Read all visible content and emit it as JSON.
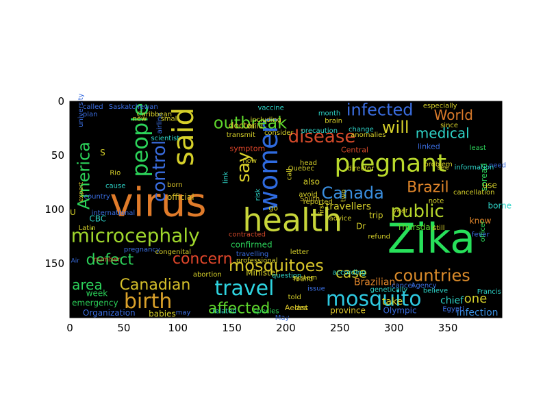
{
  "figure": {
    "image_kind": "word cloud",
    "background_color": "#000000",
    "axes": {
      "x_ticks": [
        "0",
        "50",
        "100",
        "150",
        "200",
        "250",
        "300",
        "350"
      ],
      "y_ticks": [
        "0",
        "50",
        "100",
        "150"
      ],
      "xlim": [
        0,
        400
      ],
      "ylim": [
        0,
        200
      ],
      "grid": false
    }
  },
  "words": [
    {
      "text": "virus",
      "color": "#e07b2a"
    },
    {
      "text": "health",
      "color": "#c8d63a"
    },
    {
      "text": "Zika",
      "color": "#27e05a"
    },
    {
      "text": "said",
      "color": "#d6d02a"
    },
    {
      "text": "pregnant",
      "color": "#b9d92c"
    },
    {
      "text": "travel",
      "color": "#2ed4e0"
    },
    {
      "text": "mosquito",
      "color": "#2ec8e0"
    },
    {
      "text": "women",
      "color": "#2f6be0"
    },
    {
      "text": "people",
      "color": "#2cd35a"
    },
    {
      "text": "microcephaly",
      "color": "#9fd62c"
    },
    {
      "text": "birth",
      "color": "#d9a02a"
    },
    {
      "text": "countries",
      "color": "#d98a2a"
    },
    {
      "text": "mosquitoes",
      "color": "#d6c42a"
    },
    {
      "text": "public",
      "color": "#b6d62c"
    },
    {
      "text": "disease",
      "color": "#d64a2a"
    },
    {
      "text": "America",
      "color": "#2cd35a"
    },
    {
      "text": "infected",
      "color": "#3a6de0"
    },
    {
      "text": "outbreak",
      "color": "#5ed62c"
    },
    {
      "text": "Canada",
      "color": "#3a8fe0"
    },
    {
      "text": "Brazil",
      "color": "#e0852a"
    },
    {
      "text": "will",
      "color": "#d6d02a"
    },
    {
      "text": "World",
      "color": "#d97a2a"
    },
    {
      "text": "medical",
      "color": "#2ed4c8"
    },
    {
      "text": "control",
      "color": "#3a6de0"
    },
    {
      "text": "say",
      "color": "#d9d02a"
    },
    {
      "text": "defect",
      "color": "#2cd35a"
    },
    {
      "text": "concern",
      "color": "#e0462a"
    },
    {
      "text": "area",
      "color": "#2cd35a"
    },
    {
      "text": "Canadian",
      "color": "#d6c02a"
    },
    {
      "text": "case",
      "color": "#d6d02a"
    },
    {
      "text": "affected",
      "color": "#5ed62c"
    },
    {
      "text": "one",
      "color": "#d6d02a"
    },
    {
      "text": "infection",
      "color": "#3a8fe0"
    },
    {
      "text": "Olympic",
      "color": "#3a6de0"
    },
    {
      "text": "province",
      "color": "#d6c02a"
    },
    {
      "text": "last",
      "color": "#d6d02a"
    },
    {
      "text": "Aedes",
      "color": "#d6c02a"
    },
    {
      "text": "species",
      "color": "#2cd35a"
    },
    {
      "text": "related",
      "color": "#2ed4c8"
    },
    {
      "text": "babies",
      "color": "#d6d02a"
    },
    {
      "text": "Organization",
      "color": "#3a6de0"
    },
    {
      "text": "emergency",
      "color": "#2cd35a"
    },
    {
      "text": "week",
      "color": "#2cd35a"
    },
    {
      "text": "Air",
      "color": "#3a6de0"
    },
    {
      "text": "CBC",
      "color": "#2ed4c8"
    },
    {
      "text": "Latin",
      "color": "#d6d02a"
    },
    {
      "text": "country",
      "color": "#3a6de0"
    },
    {
      "text": "cause",
      "color": "#2ed4c8"
    },
    {
      "text": "expert",
      "color": "#d6c02a"
    },
    {
      "text": "official",
      "color": "#d6c02a"
    },
    {
      "text": "born",
      "color": "#d6c02a"
    },
    {
      "text": "link",
      "color": "#2ed4c8"
    },
    {
      "text": "symptom",
      "color": "#e0462a"
    },
    {
      "text": "now",
      "color": "#d6d02a"
    },
    {
      "text": "doctor",
      "color": "#d6c02a"
    },
    {
      "text": "risk",
      "color": "#2ed4c8"
    },
    {
      "text": "go",
      "color": "#d6d02a"
    },
    {
      "text": "also",
      "color": "#d6d02a"
    },
    {
      "text": "travellers",
      "color": "#d6d02a"
    },
    {
      "text": "trip",
      "color": "#d6d02a"
    },
    {
      "text": "year",
      "color": "#d6d02a"
    },
    {
      "text": "Thursday",
      "color": "#5ed62c"
    },
    {
      "text": "confirmed",
      "color": "#2cd35a"
    },
    {
      "text": "travelling",
      "color": "#3a6de0"
    },
    {
      "text": "Minister",
      "color": "#d6d02a"
    },
    {
      "text": "take",
      "color": "#d6d02a"
    },
    {
      "text": "Brazilian",
      "color": "#e0852a"
    },
    {
      "text": "Quebec",
      "color": "#d6d02a"
    },
    {
      "text": "South",
      "color": "#d6c02a"
    },
    {
      "text": "first",
      "color": "#d6d02a"
    },
    {
      "text": "two",
      "color": "#d6d02a"
    },
    {
      "text": "note",
      "color": "#d6d02a"
    },
    {
      "text": "spread",
      "color": "#2cd35a"
    },
    {
      "text": "borne",
      "color": "#2ed4c8"
    },
    {
      "text": "know",
      "color": "#e0852a"
    },
    {
      "text": "chief",
      "color": "#2ed4c8"
    },
    {
      "text": "use",
      "color": "#d6d02a"
    },
    {
      "text": "need",
      "color": "#3a6de0"
    },
    {
      "text": "least",
      "color": "#2cd35a"
    },
    {
      "text": "Central",
      "color": "#d64a2a"
    },
    {
      "text": "linked",
      "color": "#3a6de0"
    },
    {
      "text": "head",
      "color": "#d6d02a"
    },
    {
      "text": "change",
      "color": "#2ed4c8"
    },
    {
      "text": "month",
      "color": "#2ed4c8"
    },
    {
      "text": "brain",
      "color": "#d6d02a"
    },
    {
      "text": "vaccine",
      "color": "#2ed4c8"
    },
    {
      "text": "new",
      "color": "#d6d02a"
    },
    {
      "text": "small",
      "color": "#d6d02a"
    },
    {
      "text": "plan",
      "color": "#3a6de0"
    },
    {
      "text": "issue",
      "color": "#3a6de0"
    },
    {
      "text": "told",
      "color": "#d6d02a"
    },
    {
      "text": "system",
      "color": "#d6d02a"
    },
    {
      "text": "abortion",
      "color": "#d6d02a"
    },
    {
      "text": "pregnancy",
      "color": "#3a6de0"
    },
    {
      "text": "advice",
      "color": "#d6d02a"
    },
    {
      "text": "officer",
      "color": "#2cd35a"
    },
    {
      "text": "still",
      "color": "#d6d02a"
    },
    {
      "text": "see",
      "color": "#d6d02a"
    },
    {
      "text": "call",
      "color": "#d6d02a"
    },
    {
      "text": "Dr",
      "color": "#d6d02a"
    },
    {
      "text": "May",
      "color": "#3a6de0"
    },
    {
      "text": "may",
      "color": "#3a6de0"
    },
    {
      "text": "U",
      "color": "#d6d02a"
    },
    {
      "text": "S",
      "color": "#d6d02a"
    },
    {
      "text": "contracted",
      "color": "#d64a2a"
    },
    {
      "text": "reported",
      "color": "#d6d02a"
    },
    {
      "text": "precaution",
      "color": "#2ed4c8"
    },
    {
      "text": "director",
      "color": "#d6d02a"
    },
    {
      "text": "Francis",
      "color": "#2ed4c8"
    },
    {
      "text": "fever",
      "color": "#3a6de0"
    },
    {
      "text": "Egypti",
      "color": "#3a6de0"
    },
    {
      "text": "information",
      "color": "#2ed4c8"
    },
    {
      "text": "cancellation",
      "color": "#d6d02a"
    },
    {
      "text": "called",
      "color": "#3a6de0"
    },
    {
      "text": "Saskatchewan",
      "color": "#3a6de0"
    },
    {
      "text": "scientist",
      "color": "#2ed4c8"
    },
    {
      "text": "airline",
      "color": "#3a6de0"
    },
    {
      "text": "university",
      "color": "#3a6de0"
    },
    {
      "text": "Rio",
      "color": "#d6d02a"
    },
    {
      "text": "international",
      "color": "#3a6de0"
    },
    {
      "text": "number",
      "color": "#d64a2a"
    },
    {
      "text": "congenital",
      "color": "#d6d02a"
    },
    {
      "text": "professional",
      "color": "#d6d02a"
    },
    {
      "text": "letter",
      "color": "#d6d02a"
    },
    {
      "text": "refund",
      "color": "#d6d02a"
    },
    {
      "text": "question",
      "color": "#2ed4c8"
    },
    {
      "text": "according",
      "color": "#2ed4c8"
    },
    {
      "text": "found",
      "color": "#d6d02a"
    },
    {
      "text": "avoid",
      "color": "#d6d02a"
    },
    {
      "text": "transmit",
      "color": "#d6d02a"
    },
    {
      "text": "mild",
      "color": "#d6d02a"
    },
    {
      "text": "Caribbean",
      "color": "#d6d02a"
    },
    {
      "text": "cancel",
      "color": "#3a6de0"
    },
    {
      "text": "Agency",
      "color": "#3a6de0"
    },
    {
      "text": "believe",
      "color": "#2ed4c8"
    },
    {
      "text": "genetically",
      "color": "#2ed4c8"
    },
    {
      "text": "including",
      "color": "#d6d02a"
    },
    {
      "text": "since",
      "color": "#d6d02a"
    },
    {
      "text": "especially",
      "color": "#d6d02a"
    },
    {
      "text": "problem",
      "color": "#d6d02a"
    },
    {
      "text": "consider",
      "color": "#d6d02a"
    },
    {
      "text": "anomalies",
      "color": "#d6d02a"
    }
  ]
}
